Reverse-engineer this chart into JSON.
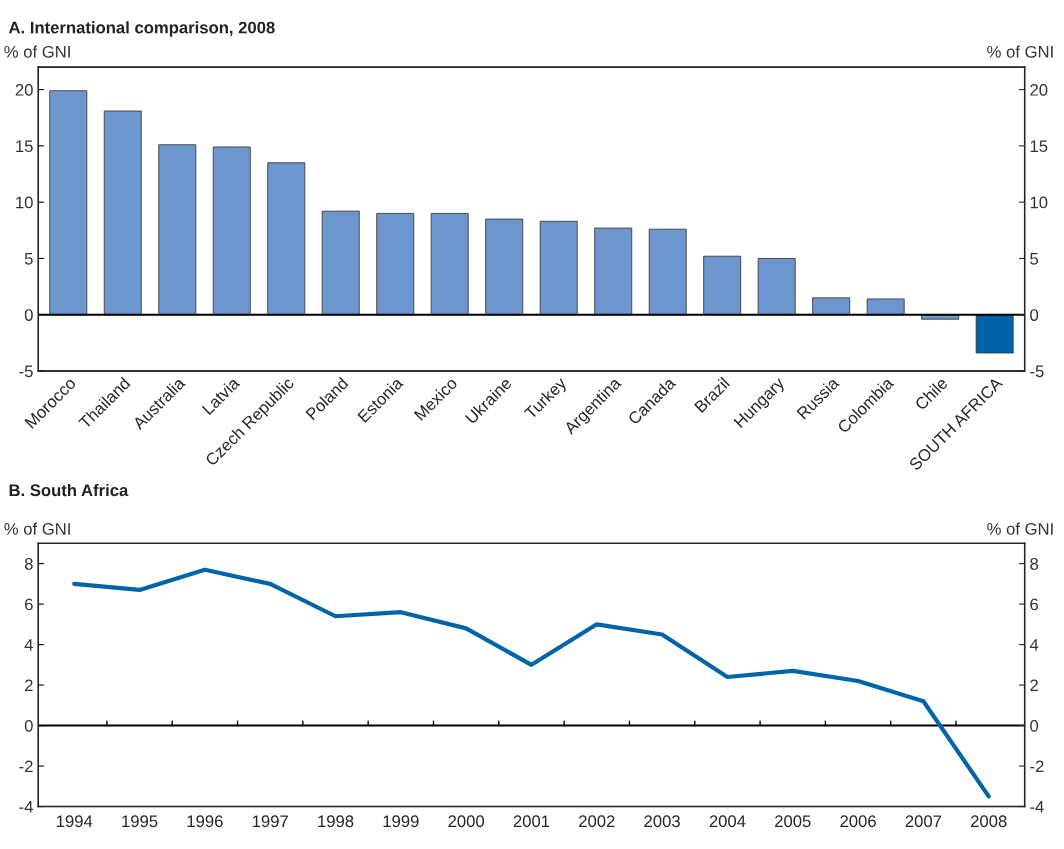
{
  "chart_data": [
    {
      "type": "bar",
      "title": "A. International comparison, 2008",
      "ylabel": "% of GNI",
      "y2label": "% of GNI",
      "categories": [
        "Morocco",
        "Thailand",
        "Australia",
        "Latvia",
        "Czech Republic",
        "Poland",
        "Estonia",
        "Mexico",
        "Ukraine",
        "Turkey",
        "Argentina",
        "Canada",
        "Brazil",
        "Hungary",
        "Russia",
        "Colombia",
        "Chile",
        "SOUTH AFRICA"
      ],
      "values": [
        19.9,
        18.1,
        15.1,
        14.9,
        13.5,
        9.2,
        9.0,
        9.0,
        8.5,
        8.3,
        7.7,
        7.6,
        5.2,
        5.0,
        1.5,
        1.4,
        -0.4,
        -3.4
      ],
      "colors": [
        "#6c96cd",
        "#6c96cd",
        "#6c96cd",
        "#6c96cd",
        "#6c96cd",
        "#6c96cd",
        "#6c96cd",
        "#6c96cd",
        "#6c96cd",
        "#6c96cd",
        "#6c96cd",
        "#6c96cd",
        "#6c96cd",
        "#6c96cd",
        "#6c96cd",
        "#6c96cd",
        "#6c96cd",
        "#0064a8"
      ],
      "ylim": [
        -5,
        22
      ],
      "yticks": [
        -5,
        0,
        5,
        10,
        15,
        20
      ],
      "y2lim": [
        -5,
        22
      ],
      "y2ticks": [
        -5,
        0,
        5,
        10,
        15,
        20
      ],
      "ref_lines": [
        {
          "axis": "y",
          "value": 0,
          "color": "#000000"
        }
      ],
      "grid": false
    },
    {
      "type": "line",
      "title": "B. South Africa",
      "ylabel": "% of GNI",
      "y2label": "% of GNI",
      "categories": [
        "1994",
        "1995",
        "1996",
        "1997",
        "1998",
        "1999",
        "2000",
        "2001",
        "2002",
        "2003",
        "2004",
        "2005",
        "2006",
        "2007",
        "2008"
      ],
      "series": [
        {
          "color": "#0064a8",
          "values": [
            7.0,
            6.7,
            7.7,
            7.0,
            5.4,
            5.6,
            4.8,
            3.0,
            5.0,
            4.5,
            2.4,
            2.7,
            2.2,
            1.2,
            -3.5
          ]
        }
      ],
      "ylim": [
        -4,
        9
      ],
      "yticks": [
        -4,
        -2,
        0,
        2,
        4,
        6,
        8
      ],
      "y2lim": [
        -4,
        9
      ],
      "y2ticks": [
        -4,
        -2,
        0,
        2,
        4,
        6,
        8
      ],
      "ref_lines": [
        {
          "axis": "y",
          "value": 0,
          "color": "#000000"
        }
      ],
      "grid": false,
      "marker": "none",
      "line_style": "solid"
    }
  ]
}
